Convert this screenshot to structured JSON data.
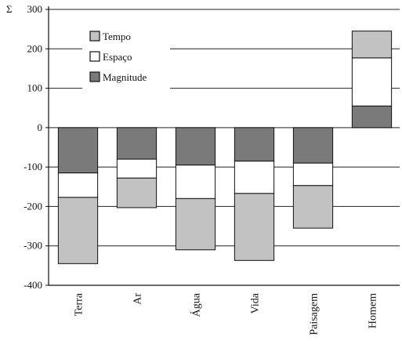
{
  "chart_data": {
    "type": "bar",
    "stacked": true,
    "ylabel": "Σ",
    "ylim": [
      -400,
      300
    ],
    "yticks": [
      300,
      200,
      100,
      0,
      -100,
      -200,
      -300,
      -400
    ],
    "grid": true,
    "legend_position": "top-left",
    "categories": [
      "Terra",
      "Ar",
      "Água",
      "Vida",
      "Paisagem",
      "Homem"
    ],
    "series": [
      {
        "name": "Magnitude",
        "color": "#7a7a7a",
        "values": [
          -115,
          -80,
          -95,
          -85,
          -90,
          55
        ]
      },
      {
        "name": "Espaço",
        "color": "#ffffff",
        "values": [
          -62,
          -48,
          -85,
          -82,
          -57,
          122
        ]
      },
      {
        "name": "Tempo",
        "color": "#c2c2c2",
        "values": [
          -168,
          -75,
          -130,
          -170,
          -108,
          68
        ]
      }
    ]
  }
}
